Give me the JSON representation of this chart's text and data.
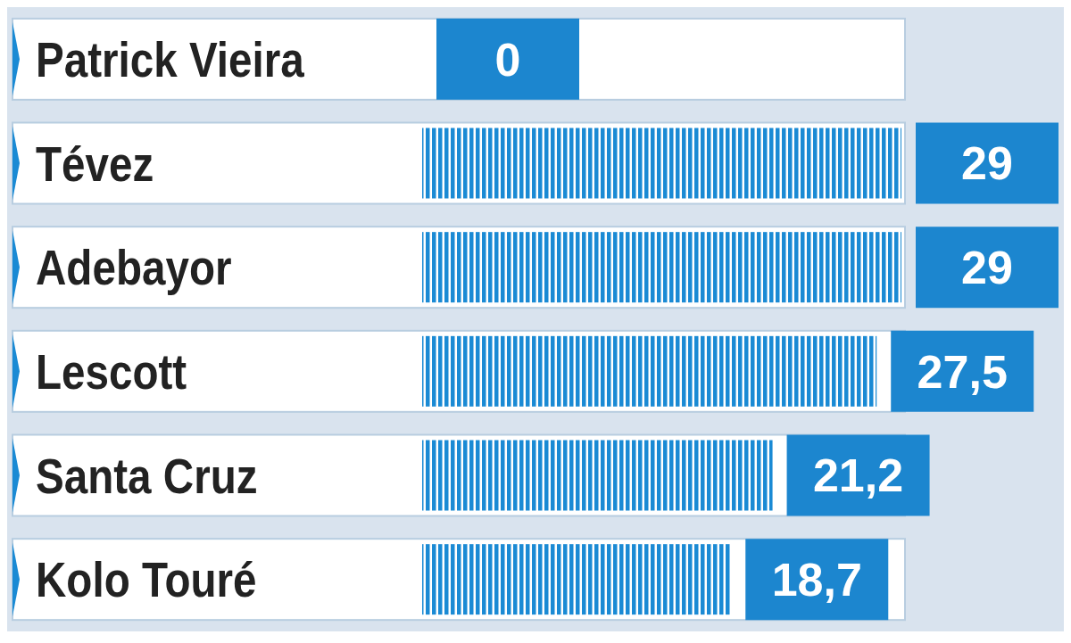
{
  "chart_data": {
    "type": "bar",
    "orientation": "horizontal",
    "categories": [
      "Patrick Vieira",
      "Tévez",
      "Adebayor",
      "Lescott",
      "Santa Cruz",
      "Kolo Touré"
    ],
    "values": [
      0,
      29,
      29,
      27.5,
      21.2,
      18.7
    ],
    "value_labels": [
      "0",
      "29",
      "29",
      "27,5",
      "21,2",
      "18,7"
    ],
    "color": "#1a8ad4"
  }
}
